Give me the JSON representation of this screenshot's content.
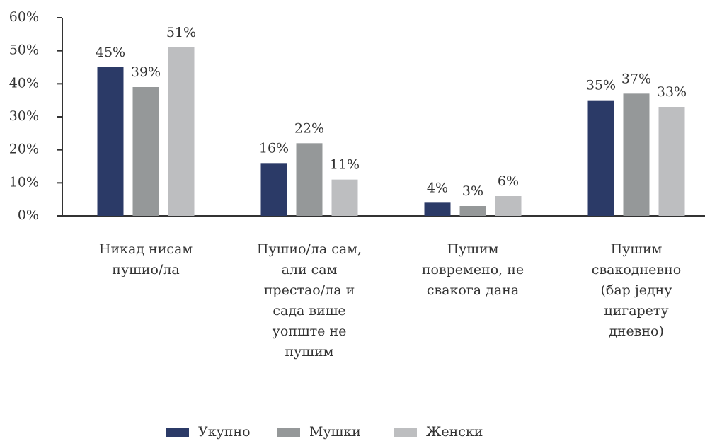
{
  "chart_data": {
    "type": "bar",
    "categories": [
      "Никад нисам пушио/ла",
      "Пушио/ла сам, али сам престао/ла и сада више уопште не пушим",
      "Пушим повремено, не свакога дана",
      "Пушим свакодневно (бар једну цигарету дневно)"
    ],
    "series": [
      {
        "name": "Укупно",
        "color": "#2b3a67",
        "values": [
          45,
          16,
          4,
          35
        ],
        "value_labels": [
          "45%",
          "16%",
          "4%",
          "35%"
        ]
      },
      {
        "name": "Мушки",
        "color": "#959899",
        "values": [
          39,
          22,
          3,
          37
        ],
        "value_labels": [
          "39%",
          "22%",
          "3%",
          "37%"
        ]
      },
      {
        "name": "Женски",
        "color": "#bdbec0",
        "values": [
          51,
          11,
          6,
          33
        ],
        "value_labels": [
          "51%",
          "11%",
          "6%",
          "33%"
        ]
      }
    ],
    "ylim": [
      0,
      60
    ],
    "yticks": [
      {
        "value": 0,
        "label": "0%"
      },
      {
        "value": 10,
        "label": "10%"
      },
      {
        "value": 20,
        "label": "20%"
      },
      {
        "value": 30,
        "label": "30%"
      },
      {
        "value": 40,
        "label": "40%"
      },
      {
        "value": 50,
        "label": "50%"
      },
      {
        "value": 60,
        "label": "60%"
      }
    ],
    "legend": "bottom"
  }
}
